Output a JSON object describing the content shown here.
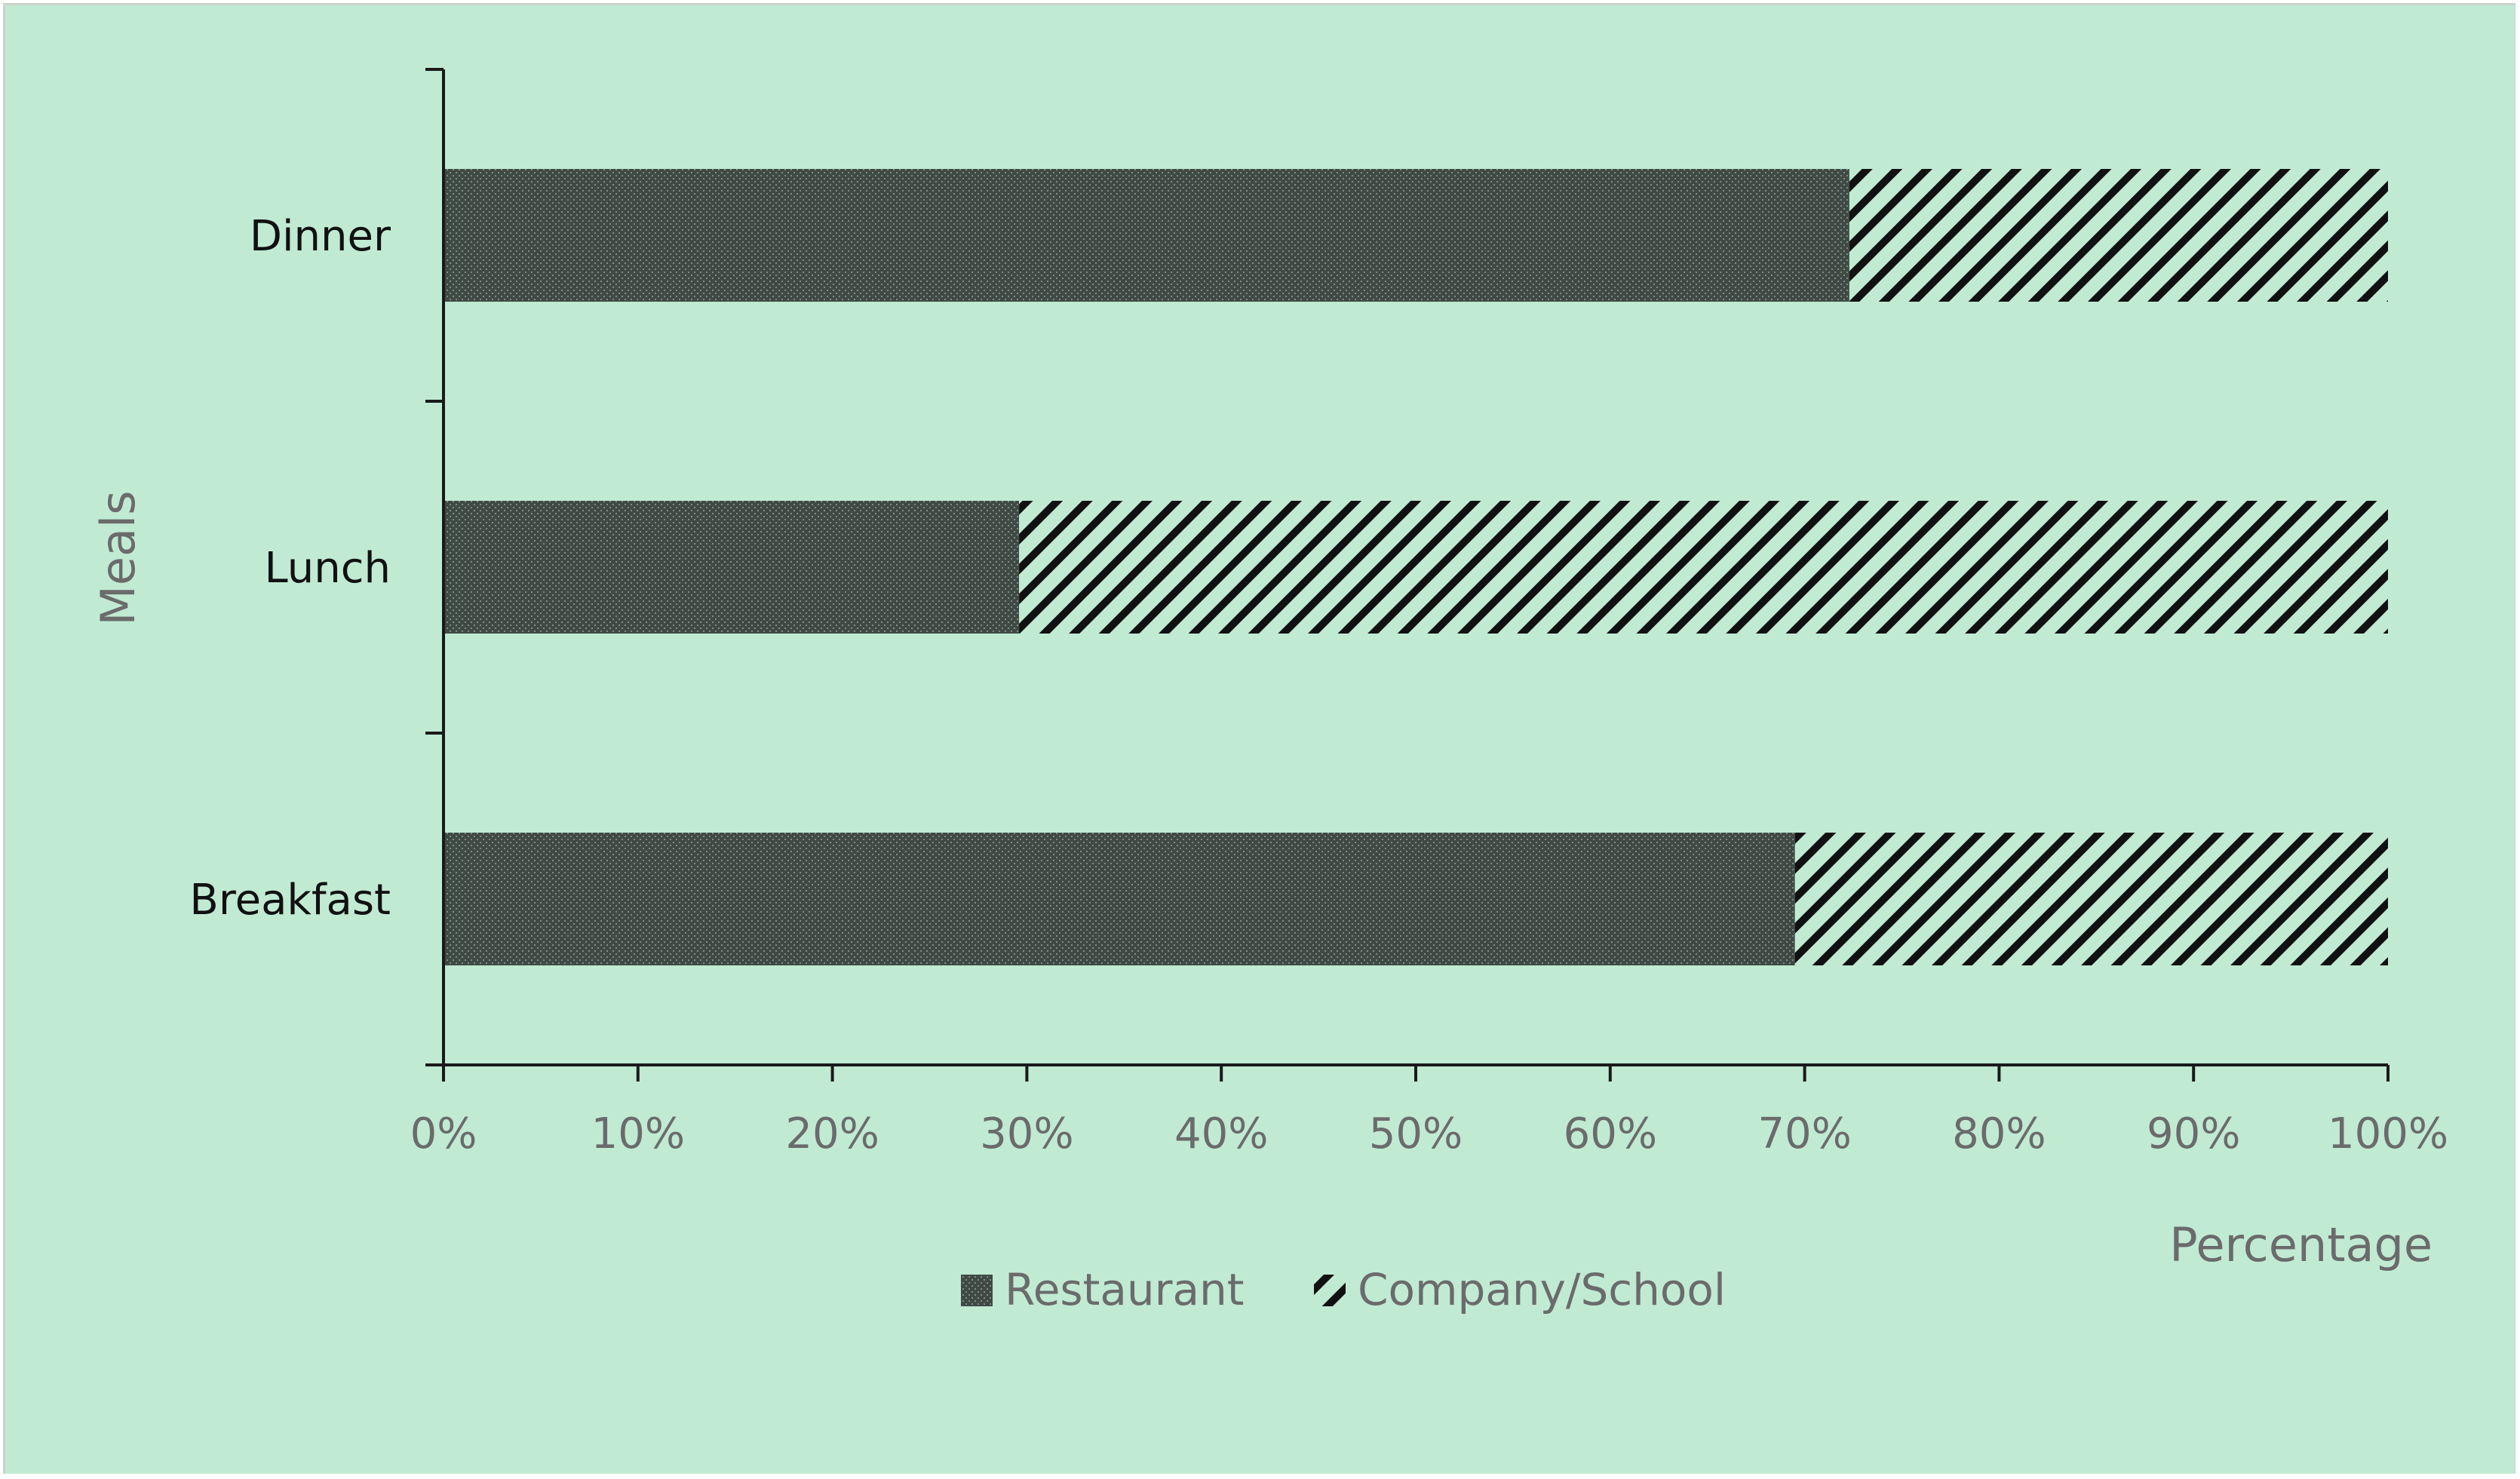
{
  "colors": {
    "background": "#c1ead3",
    "axis": "#1a1a1a",
    "restaurant_fill": "#3f4a44",
    "restaurant_dot": "#7f8c86",
    "hatch_line": "#111111",
    "category_text": "#111111",
    "tick_text": "#6b6b6b"
  },
  "chart_data": {
    "type": "bar",
    "orientation": "horizontal",
    "stacked": "percent",
    "categories": [
      "Dinner",
      "Lunch",
      "Breakfast"
    ],
    "series": [
      {
        "name": "Restaurant",
        "pattern": "crosshatch-dense",
        "values": [
          72.3,
          29.6,
          69.5
        ]
      },
      {
        "name": "Company/School",
        "pattern": "diagonal-hatch",
        "values": [
          27.7,
          70.4,
          30.5
        ]
      }
    ],
    "xlabel": "Percentage",
    "ylabel": "Meals",
    "xlim": [
      0,
      100
    ],
    "x_ticks": [
      "0%",
      "10%",
      "20%",
      "30%",
      "40%",
      "50%",
      "60%",
      "70%",
      "80%",
      "90%",
      "100%"
    ],
    "grid": false,
    "legend_position": "bottom"
  }
}
